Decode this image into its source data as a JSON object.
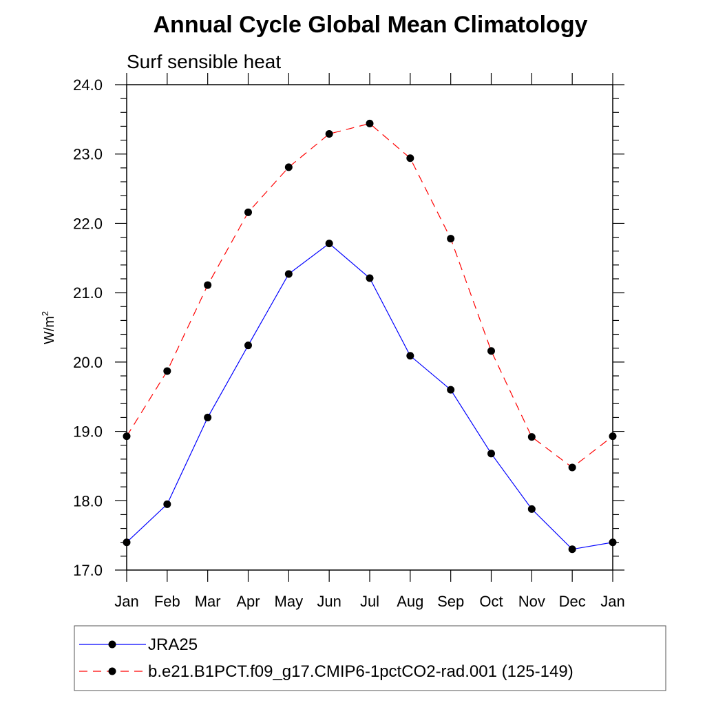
{
  "chart_data": {
    "type": "line",
    "title": "Annual Cycle Global Mean Climatology",
    "subtitle": "Surf sensible heat",
    "xlabel": "",
    "ylabel": "W/m",
    "ylabel_superscript": "2",
    "categories": [
      "Jan",
      "Feb",
      "Mar",
      "Apr",
      "May",
      "Jun",
      "Jul",
      "Aug",
      "Sep",
      "Oct",
      "Nov",
      "Dec",
      "Jan"
    ],
    "ylim": [
      17.0,
      24.0
    ],
    "yticks": [
      "17.0",
      "18.0",
      "19.0",
      "20.0",
      "21.0",
      "22.0",
      "23.0",
      "24.0"
    ],
    "grid": false,
    "legend_position": "bottom",
    "series": [
      {
        "name": "JRA25",
        "color": "#0000ff",
        "line_style": "solid",
        "marker": "filled-circle",
        "values": [
          17.4,
          17.95,
          19.2,
          20.24,
          21.27,
          21.71,
          21.21,
          20.09,
          19.6,
          18.68,
          17.88,
          17.3,
          17.4
        ]
      },
      {
        "name": "b.e21.B1PCT.f09_g17.CMIP6-1pctCO2-rad.001 (125-149)",
        "color": "#ff0000",
        "line_style": "dashed",
        "marker": "filled-circle",
        "values": [
          18.93,
          19.87,
          21.11,
          22.16,
          22.81,
          23.29,
          23.44,
          22.94,
          21.78,
          20.16,
          18.92,
          18.48,
          18.93
        ]
      }
    ]
  }
}
